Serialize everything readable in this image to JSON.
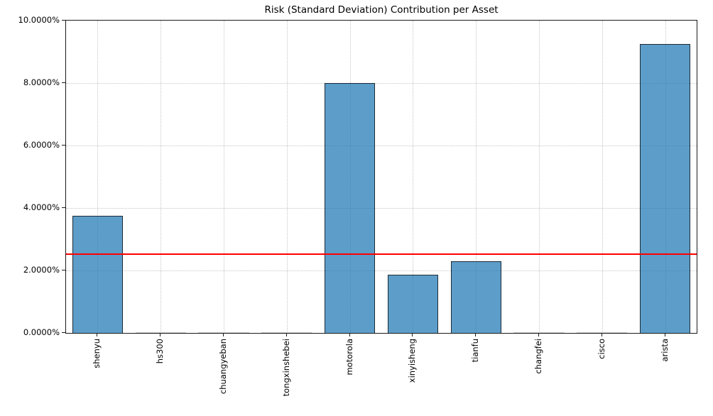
{
  "chart_data": {
    "type": "bar",
    "title": "Risk (Standard Deviation) Contribution per Asset",
    "categories": [
      "shenyu",
      "hs300",
      "chuangyeban",
      "tongxinshebei",
      "motorola",
      "xinyisheng",
      "tianfu",
      "changfei",
      "cisco",
      "arista"
    ],
    "values": [
      3.76,
      0.01,
      0.01,
      0.01,
      7.99,
      1.86,
      2.29,
      0.01,
      0.01,
      9.25
    ],
    "unit": "percent",
    "xlabel": "",
    "ylabel": "",
    "ylim": [
      0,
      10
    ],
    "yticks": [
      0,
      2,
      4,
      6,
      8,
      10
    ],
    "ytick_labels": [
      "0.0000%",
      "2.0000%",
      "4.0000%",
      "6.0000%",
      "8.0000%",
      "10.0000%"
    ],
    "reference_line": {
      "value": 2.53,
      "color": "#ff0000"
    },
    "bar_fill_color": "#62a0ca",
    "bar_edge_color": "#4c4c4c",
    "grid": true,
    "grid_color": "#c6c6c6",
    "bar_width_ratio": 0.8,
    "legend_position": "none"
  }
}
